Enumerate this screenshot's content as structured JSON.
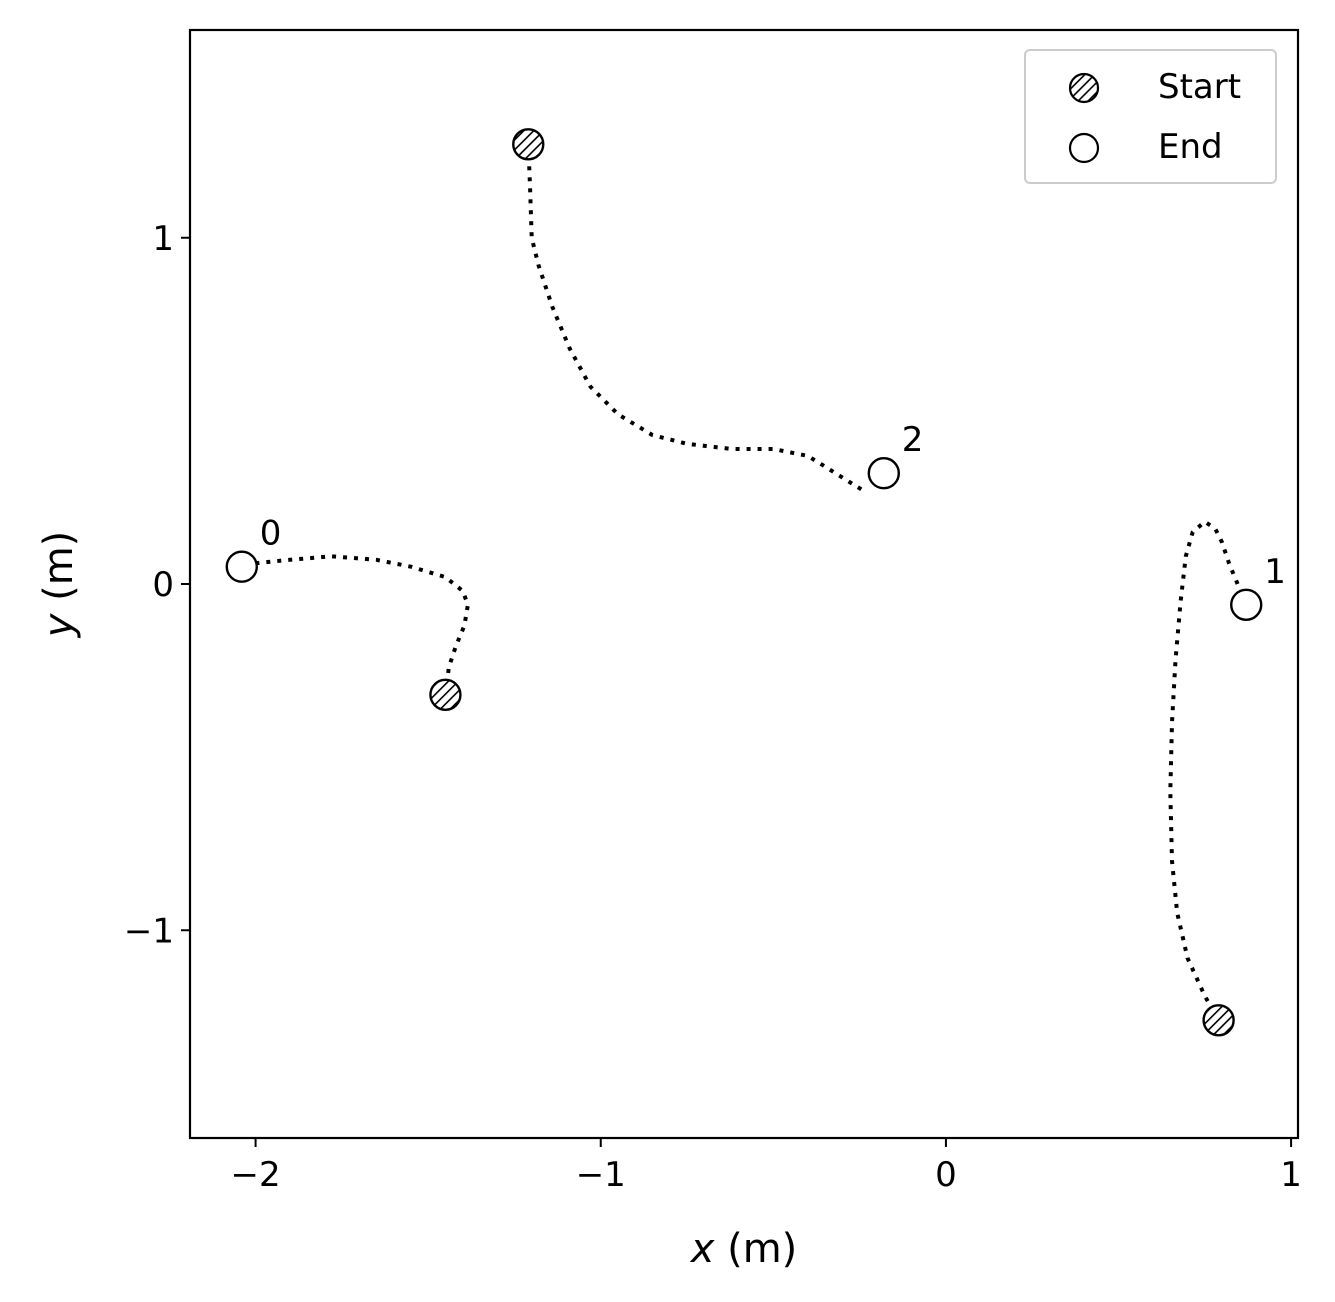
{
  "chart_data": {
    "type": "scatter",
    "xlabel_var": "x",
    "xlabel_unit": "(m)",
    "ylabel_var": "y",
    "ylabel_unit": "(m)",
    "xlim": [
      -2.19,
      1.02
    ],
    "ylim": [
      -1.6,
      1.6
    ],
    "xticks": [
      {
        "value": -2,
        "label": "−2"
      },
      {
        "value": -1,
        "label": "−1"
      },
      {
        "value": 0,
        "label": "0"
      },
      {
        "value": 1,
        "label": "1"
      }
    ],
    "yticks": [
      {
        "value": -1,
        "label": "−1"
      },
      {
        "value": 0,
        "label": "0"
      },
      {
        "value": 1,
        "label": "1"
      }
    ],
    "grid": false,
    "legend": {
      "location": "upper right",
      "entries": [
        {
          "label": "Start",
          "marker": "hatched-circle"
        },
        {
          "label": "End",
          "marker": "open-circle"
        }
      ]
    },
    "colors": {
      "marker_edge": "#000000",
      "line": "#000000",
      "end_fill": "#ffffff"
    },
    "trajectories": [
      {
        "label": "0",
        "start": [
          -1.45,
          -0.32
        ],
        "end": [
          -2.04,
          0.05
        ],
        "path": [
          [
            -1.45,
            -0.32
          ],
          [
            -1.44,
            -0.24
          ],
          [
            -1.42,
            -0.18
          ],
          [
            -1.395,
            -0.12
          ],
          [
            -1.385,
            -0.06
          ],
          [
            -1.4,
            -0.02
          ],
          [
            -1.45,
            0.02
          ],
          [
            -1.55,
            0.05
          ],
          [
            -1.65,
            0.07
          ],
          [
            -1.78,
            0.08
          ],
          [
            -1.9,
            0.07
          ],
          [
            -2.0,
            0.06
          ]
        ]
      },
      {
        "label": "1",
        "start": [
          0.79,
          -1.26
        ],
        "end": [
          0.87,
          -0.06
        ],
        "path": [
          [
            0.79,
            -1.26
          ],
          [
            0.75,
            -1.19
          ],
          [
            0.7,
            -1.08
          ],
          [
            0.67,
            -0.95
          ],
          [
            0.655,
            -0.8
          ],
          [
            0.65,
            -0.6
          ],
          [
            0.655,
            -0.4
          ],
          [
            0.665,
            -0.22
          ],
          [
            0.68,
            -0.05
          ],
          [
            0.695,
            0.08
          ],
          [
            0.715,
            0.15
          ],
          [
            0.75,
            0.18
          ],
          [
            0.78,
            0.16
          ],
          [
            0.8,
            0.12
          ],
          [
            0.82,
            0.06
          ],
          [
            0.845,
            0.0
          ]
        ]
      },
      {
        "label": "2",
        "start": [
          -1.21,
          1.27
        ],
        "end": [
          -0.18,
          0.32
        ],
        "path": [
          [
            -1.21,
            1.27
          ],
          [
            -1.205,
            1.15
          ],
          [
            -1.2,
            1.0
          ],
          [
            -1.18,
            0.92
          ],
          [
            -1.14,
            0.8
          ],
          [
            -1.09,
            0.68
          ],
          [
            -1.03,
            0.57
          ],
          [
            -0.95,
            0.49
          ],
          [
            -0.85,
            0.43
          ],
          [
            -0.75,
            0.405
          ],
          [
            -0.62,
            0.39
          ],
          [
            -0.5,
            0.39
          ],
          [
            -0.4,
            0.37
          ],
          [
            -0.32,
            0.32
          ],
          [
            -0.24,
            0.27
          ]
        ]
      }
    ]
  }
}
